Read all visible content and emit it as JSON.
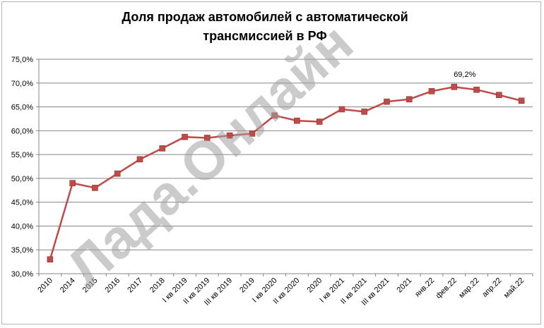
{
  "chart_data": {
    "type": "line",
    "title_line1": "Доля продаж автомобилей с автоматической",
    "title_line2": "трансмиссией в РФ",
    "categories": [
      "2010",
      "2014",
      "2015",
      "2016",
      "2017",
      "2018",
      "I кв 2019",
      "II кв 2019",
      "III кв 2019",
      "2019",
      "I кв 2020",
      "II кв 2020",
      "2020",
      "I кв 2021",
      "II кв 2021",
      "III кв 2021",
      "2021",
      "янв.22",
      "фев.22",
      "мар.22",
      "апр.22",
      "май.22"
    ],
    "series": [
      {
        "values": [
          33.0,
          49.0,
          48.0,
          51.0,
          54.0,
          56.3,
          58.7,
          58.5,
          59.0,
          59.4,
          63.2,
          62.1,
          61.9,
          64.5,
          64.0,
          66.1,
          66.6,
          68.3,
          69.2,
          68.6,
          67.5,
          66.3
        ],
        "color": "#be4b48"
      }
    ],
    "data_labels": [
      {
        "index": 18,
        "text": "69,2%"
      }
    ],
    "yticks": [
      "30,0%",
      "35,0%",
      "40,0%",
      "45,0%",
      "50,0%",
      "55,0%",
      "60,0%",
      "65,0%",
      "70,0%",
      "75,0%"
    ],
    "ylim": [
      30,
      75
    ],
    "grid": true,
    "legend": "none"
  },
  "watermark": "Лада.Онлайн"
}
